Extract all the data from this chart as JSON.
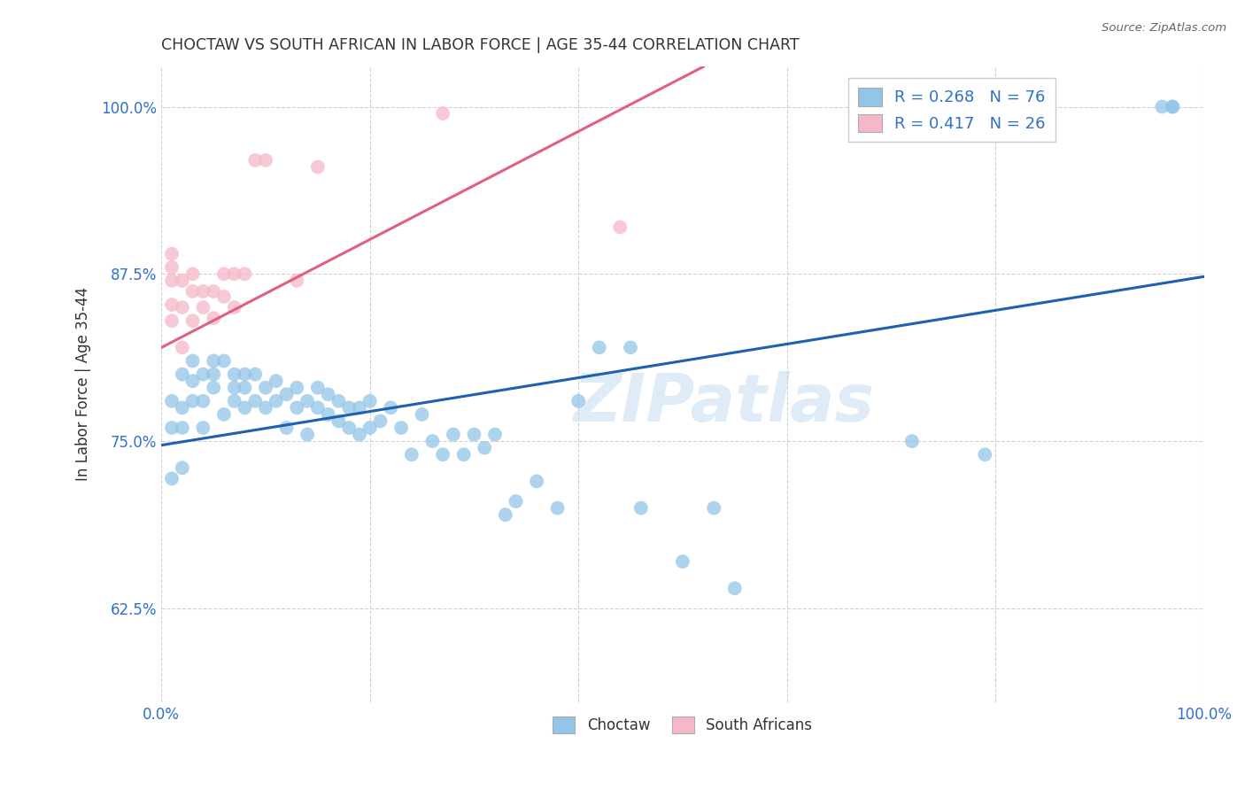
{
  "title": "CHOCTAW VS SOUTH AFRICAN IN LABOR FORCE | AGE 35-44 CORRELATION CHART",
  "source": "Source: ZipAtlas.com",
  "ylabel": "In Labor Force | Age 35-44",
  "xlim": [
    0.0,
    1.0
  ],
  "ylim": [
    0.555,
    1.03
  ],
  "yticks": [
    0.625,
    0.75,
    0.875,
    1.0
  ],
  "xticks": [
    0.0,
    0.2,
    0.4,
    0.6,
    0.8,
    1.0
  ],
  "color_choctaw": "#92C5E8",
  "color_sa": "#F5B8C8",
  "line_color_choctaw": "#2060B0",
  "line_color_sa": "#E06080",
  "text_color_blue": "#3070C8",
  "watermark_color": "#C0D8F0",
  "background_color": "#FFFFFF",
  "grid_color": "#CCCCCC",
  "choctaw_x": [
    0.01,
    0.01,
    0.01,
    0.02,
    0.02,
    0.02,
    0.02,
    0.03,
    0.03,
    0.03,
    0.04,
    0.04,
    0.04,
    0.05,
    0.05,
    0.05,
    0.06,
    0.06,
    0.07,
    0.07,
    0.07,
    0.08,
    0.08,
    0.08,
    0.09,
    0.09,
    0.1,
    0.1,
    0.11,
    0.11,
    0.12,
    0.12,
    0.13,
    0.13,
    0.14,
    0.14,
    0.15,
    0.15,
    0.16,
    0.16,
    0.17,
    0.17,
    0.18,
    0.18,
    0.19,
    0.19,
    0.2,
    0.2,
    0.21,
    0.22,
    0.23,
    0.24,
    0.25,
    0.26,
    0.27,
    0.28,
    0.29,
    0.3,
    0.31,
    0.32,
    0.33,
    0.34,
    0.36,
    0.38,
    0.4,
    0.42,
    0.45,
    0.46,
    0.5,
    0.53,
    0.55,
    0.72,
    0.79,
    0.96,
    0.97,
    0.97
  ],
  "choctaw_y": [
    0.722,
    0.76,
    0.78,
    0.73,
    0.76,
    0.775,
    0.8,
    0.78,
    0.795,
    0.81,
    0.76,
    0.78,
    0.8,
    0.79,
    0.8,
    0.81,
    0.77,
    0.81,
    0.78,
    0.79,
    0.8,
    0.775,
    0.79,
    0.8,
    0.78,
    0.8,
    0.775,
    0.79,
    0.78,
    0.795,
    0.76,
    0.785,
    0.775,
    0.79,
    0.755,
    0.78,
    0.775,
    0.79,
    0.77,
    0.785,
    0.765,
    0.78,
    0.76,
    0.775,
    0.755,
    0.775,
    0.76,
    0.78,
    0.765,
    0.775,
    0.76,
    0.74,
    0.77,
    0.75,
    0.74,
    0.755,
    0.74,
    0.755,
    0.745,
    0.755,
    0.695,
    0.705,
    0.72,
    0.7,
    0.78,
    0.82,
    0.82,
    0.7,
    0.66,
    0.7,
    0.64,
    0.75,
    0.74,
    1.0,
    1.0,
    1.0
  ],
  "sa_x": [
    0.01,
    0.01,
    0.01,
    0.01,
    0.01,
    0.02,
    0.02,
    0.02,
    0.03,
    0.03,
    0.03,
    0.04,
    0.04,
    0.05,
    0.05,
    0.06,
    0.06,
    0.07,
    0.07,
    0.08,
    0.09,
    0.1,
    0.13,
    0.15,
    0.27,
    0.44
  ],
  "sa_y": [
    0.84,
    0.852,
    0.87,
    0.88,
    0.89,
    0.82,
    0.85,
    0.87,
    0.84,
    0.862,
    0.875,
    0.85,
    0.862,
    0.842,
    0.862,
    0.858,
    0.875,
    0.85,
    0.875,
    0.875,
    0.96,
    0.96,
    0.87,
    0.955,
    0.995,
    0.91
  ],
  "blue_line_x0": 0.0,
  "blue_line_y0": 0.747,
  "blue_line_x1": 1.0,
  "blue_line_y1": 0.873,
  "pink_line_x0": 0.0,
  "pink_line_y0": 0.82,
  "pink_line_x1": 0.52,
  "pink_line_y1": 1.03
}
